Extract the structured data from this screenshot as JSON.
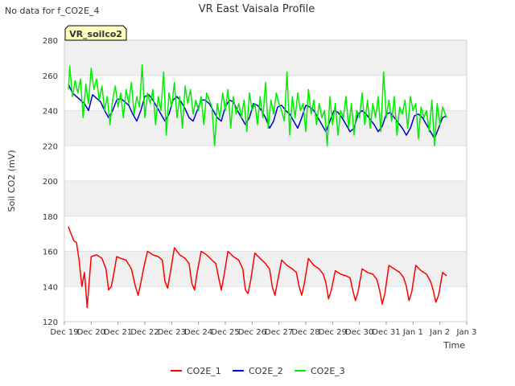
{
  "page": {
    "nodata_message": "No data for f_CO2E_4",
    "station_badge": "VR_soilco2"
  },
  "colors": {
    "CO2E_1": "#ff0000",
    "CO2E_2": "#0000cc",
    "CO2E_3": "#00ee00",
    "badge_bg": "#ffffc0",
    "badge_text": "#8b0000",
    "band": "#f0f0f0"
  },
  "chart_data": {
    "type": "line",
    "title": "VR East Vaisala Profile",
    "xlabel": "Time",
    "ylabel": "Soil CO2 (mV)",
    "xlim": [
      0,
      15
    ],
    "ylim": [
      120,
      280
    ],
    "x_ticks": [
      {
        "label": "Dec 19",
        "value": 0
      },
      {
        "label": "Dec 20",
        "value": 1
      },
      {
        "label": "Dec 21",
        "value": 2
      },
      {
        "label": "Dec 22",
        "value": 3
      },
      {
        "label": "Dec 23",
        "value": 4
      },
      {
        "label": "Dec 24",
        "value": 5
      },
      {
        "label": "Dec 25",
        "value": 6
      },
      {
        "label": "Dec 26",
        "value": 7
      },
      {
        "label": "Dec 27",
        "value": 8
      },
      {
        "label": "Dec 28",
        "value": 9
      },
      {
        "label": "Dec 29",
        "value": 10
      },
      {
        "label": "Dec 30",
        "value": 11
      },
      {
        "label": "Dec 31",
        "value": 12
      },
      {
        "label": "Jan 1",
        "value": 13
      },
      {
        "label": "Jan 2",
        "value": 14
      },
      {
        "label": "Jan 3",
        "value": 15
      }
    ],
    "y_ticks": [
      120,
      140,
      160,
      180,
      200,
      220,
      240,
      260,
      280
    ],
    "legend_position": "bottom-center",
    "series": [
      {
        "name": "CO2E_1",
        "x": [
          0.15,
          0.25,
          0.35,
          0.45,
          0.55,
          0.65,
          0.75,
          0.85,
          1.0,
          1.2,
          1.4,
          1.55,
          1.65,
          1.75,
          1.85,
          1.95,
          2.1,
          2.3,
          2.5,
          2.65,
          2.75,
          2.85,
          2.95,
          3.1,
          3.3,
          3.5,
          3.65,
          3.75,
          3.85,
          3.95,
          4.1,
          4.3,
          4.5,
          4.65,
          4.75,
          4.85,
          4.95,
          5.1,
          5.3,
          5.5,
          5.65,
          5.75,
          5.85,
          5.95,
          6.1,
          6.3,
          6.5,
          6.65,
          6.75,
          6.85,
          6.95,
          7.1,
          7.3,
          7.5,
          7.65,
          7.75,
          7.85,
          7.95,
          8.1,
          8.3,
          8.5,
          8.65,
          8.75,
          8.85,
          8.95,
          9.1,
          9.3,
          9.5,
          9.65,
          9.75,
          9.85,
          9.95,
          10.1,
          10.3,
          10.5,
          10.65,
          10.75,
          10.85,
          10.95,
          11.1,
          11.3,
          11.5,
          11.65,
          11.75,
          11.85,
          11.95,
          12.1,
          12.3,
          12.5,
          12.65,
          12.75,
          12.85,
          12.95,
          13.1,
          13.3,
          13.5,
          13.65,
          13.75,
          13.85,
          13.95,
          14.1,
          14.25
        ],
        "values": [
          174,
          170,
          166,
          165,
          155,
          140,
          148,
          128,
          157,
          158,
          156,
          150,
          138,
          140,
          148,
          157,
          156,
          155,
          150,
          140,
          135,
          142,
          150,
          160,
          158,
          157,
          155,
          143,
          139,
          148,
          162,
          158,
          156,
          153,
          142,
          138,
          148,
          160,
          158,
          155,
          153,
          145,
          138,
          146,
          160,
          157,
          155,
          150,
          138,
          136,
          144,
          159,
          156,
          153,
          150,
          140,
          135,
          143,
          155,
          152,
          150,
          148,
          140,
          135,
          142,
          156,
          152,
          150,
          147,
          142,
          133,
          138,
          149,
          147,
          146,
          145,
          138,
          132,
          137,
          150,
          148,
          147,
          144,
          138,
          130,
          136,
          152,
          150,
          148,
          145,
          140,
          132,
          137,
          152,
          149,
          147,
          143,
          138,
          131,
          135,
          148,
          146
        ]
      },
      {
        "name": "CO2E_2",
        "x": [
          0.15,
          0.3,
          0.45,
          0.6,
          0.75,
          0.9,
          1.05,
          1.2,
          1.35,
          1.5,
          1.65,
          1.8,
          1.95,
          2.1,
          2.25,
          2.4,
          2.55,
          2.7,
          2.85,
          3.0,
          3.15,
          3.3,
          3.45,
          3.6,
          3.75,
          3.9,
          4.05,
          4.2,
          4.35,
          4.5,
          4.65,
          4.8,
          4.95,
          5.1,
          5.25,
          5.4,
          5.55,
          5.7,
          5.85,
          6.0,
          6.15,
          6.3,
          6.45,
          6.6,
          6.75,
          6.9,
          7.05,
          7.2,
          7.35,
          7.5,
          7.65,
          7.8,
          7.95,
          8.1,
          8.25,
          8.4,
          8.55,
          8.7,
          8.85,
          9.0,
          9.15,
          9.3,
          9.45,
          9.6,
          9.75,
          9.9,
          10.05,
          10.2,
          10.35,
          10.5,
          10.65,
          10.8,
          10.95,
          11.1,
          11.25,
          11.4,
          11.55,
          11.7,
          11.85,
          12.0,
          12.15,
          12.3,
          12.45,
          12.6,
          12.75,
          12.9,
          13.05,
          13.2,
          13.35,
          13.5,
          13.65,
          13.8,
          13.95,
          14.1,
          14.25
        ],
        "values": [
          255,
          250,
          248,
          246,
          244,
          240,
          249,
          247,
          245,
          240,
          236,
          240,
          246,
          247,
          245,
          243,
          238,
          234,
          240,
          248,
          249,
          246,
          242,
          238,
          234,
          238,
          246,
          248,
          245,
          241,
          236,
          234,
          240,
          246,
          246,
          244,
          240,
          236,
          234,
          242,
          246,
          245,
          240,
          236,
          232,
          236,
          244,
          243,
          240,
          236,
          230,
          234,
          242,
          243,
          240,
          238,
          234,
          230,
          236,
          243,
          242,
          240,
          236,
          232,
          228,
          234,
          240,
          239,
          236,
          232,
          228,
          230,
          238,
          240,
          238,
          235,
          232,
          228,
          231,
          238,
          239,
          236,
          233,
          230,
          226,
          230,
          237,
          238,
          236,
          232,
          228,
          224,
          230,
          236,
          237
        ]
      },
      {
        "name": "CO2E_3",
        "x": [
          0.15,
          0.2,
          0.3,
          0.4,
          0.5,
          0.6,
          0.7,
          0.8,
          0.9,
          1.0,
          1.1,
          1.2,
          1.3,
          1.4,
          1.5,
          1.6,
          1.7,
          1.8,
          1.9,
          2.0,
          2.1,
          2.2,
          2.3,
          2.4,
          2.5,
          2.6,
          2.7,
          2.8,
          2.9,
          3.0,
          3.1,
          3.2,
          3.3,
          3.4,
          3.5,
          3.6,
          3.7,
          3.8,
          3.9,
          4.0,
          4.1,
          4.2,
          4.3,
          4.4,
          4.5,
          4.6,
          4.7,
          4.8,
          4.9,
          5.0,
          5.1,
          5.2,
          5.3,
          5.4,
          5.5,
          5.6,
          5.7,
          5.8,
          5.9,
          6.0,
          6.1,
          6.2,
          6.3,
          6.4,
          6.5,
          6.6,
          6.7,
          6.8,
          6.9,
          7.0,
          7.1,
          7.2,
          7.3,
          7.4,
          7.5,
          7.6,
          7.7,
          7.8,
          7.9,
          8.0,
          8.1,
          8.2,
          8.3,
          8.4,
          8.5,
          8.6,
          8.7,
          8.8,
          8.9,
          9.0,
          9.1,
          9.2,
          9.3,
          9.4,
          9.5,
          9.6,
          9.7,
          9.8,
          9.9,
          10.0,
          10.1,
          10.2,
          10.3,
          10.4,
          10.5,
          10.6,
          10.7,
          10.8,
          10.9,
          11.0,
          11.1,
          11.2,
          11.3,
          11.4,
          11.5,
          11.6,
          11.7,
          11.8,
          11.9,
          12.0,
          12.1,
          12.2,
          12.3,
          12.4,
          12.5,
          12.6,
          12.7,
          12.8,
          12.9,
          13.0,
          13.1,
          13.2,
          13.3,
          13.4,
          13.5,
          13.6,
          13.7,
          13.8,
          13.9,
          14.0,
          14.1,
          14.2,
          14.25
        ],
        "values": [
          252,
          265,
          248,
          257,
          250,
          258,
          236,
          255,
          244,
          264,
          252,
          258,
          246,
          254,
          240,
          248,
          232,
          246,
          254,
          242,
          250,
          236,
          252,
          244,
          256,
          238,
          248,
          242,
          266,
          236,
          250,
          244,
          252,
          232,
          248,
          240,
          262,
          226,
          250,
          242,
          256,
          236,
          248,
          230,
          254,
          244,
          252,
          238,
          246,
          240,
          248,
          232,
          250,
          246,
          242,
          220,
          244,
          236,
          250,
          240,
          252,
          230,
          248,
          238,
          244,
          236,
          246,
          228,
          250,
          240,
          244,
          232,
          248,
          236,
          256,
          230,
          246,
          238,
          250,
          244,
          240,
          234,
          262,
          226,
          248,
          236,
          250,
          240,
          244,
          228,
          252,
          238,
          246,
          232,
          244,
          236,
          240,
          220,
          248,
          232,
          244,
          226,
          240,
          236,
          248,
          230,
          244,
          226,
          240,
          236,
          250,
          232,
          246,
          230,
          244,
          236,
          248,
          228,
          262,
          236,
          246,
          234,
          248,
          226,
          242,
          238,
          246,
          230,
          248,
          240,
          244,
          224,
          242,
          236,
          240,
          228,
          246,
          220,
          244,
          232,
          242,
          238,
          236
        ]
      }
    ]
  }
}
